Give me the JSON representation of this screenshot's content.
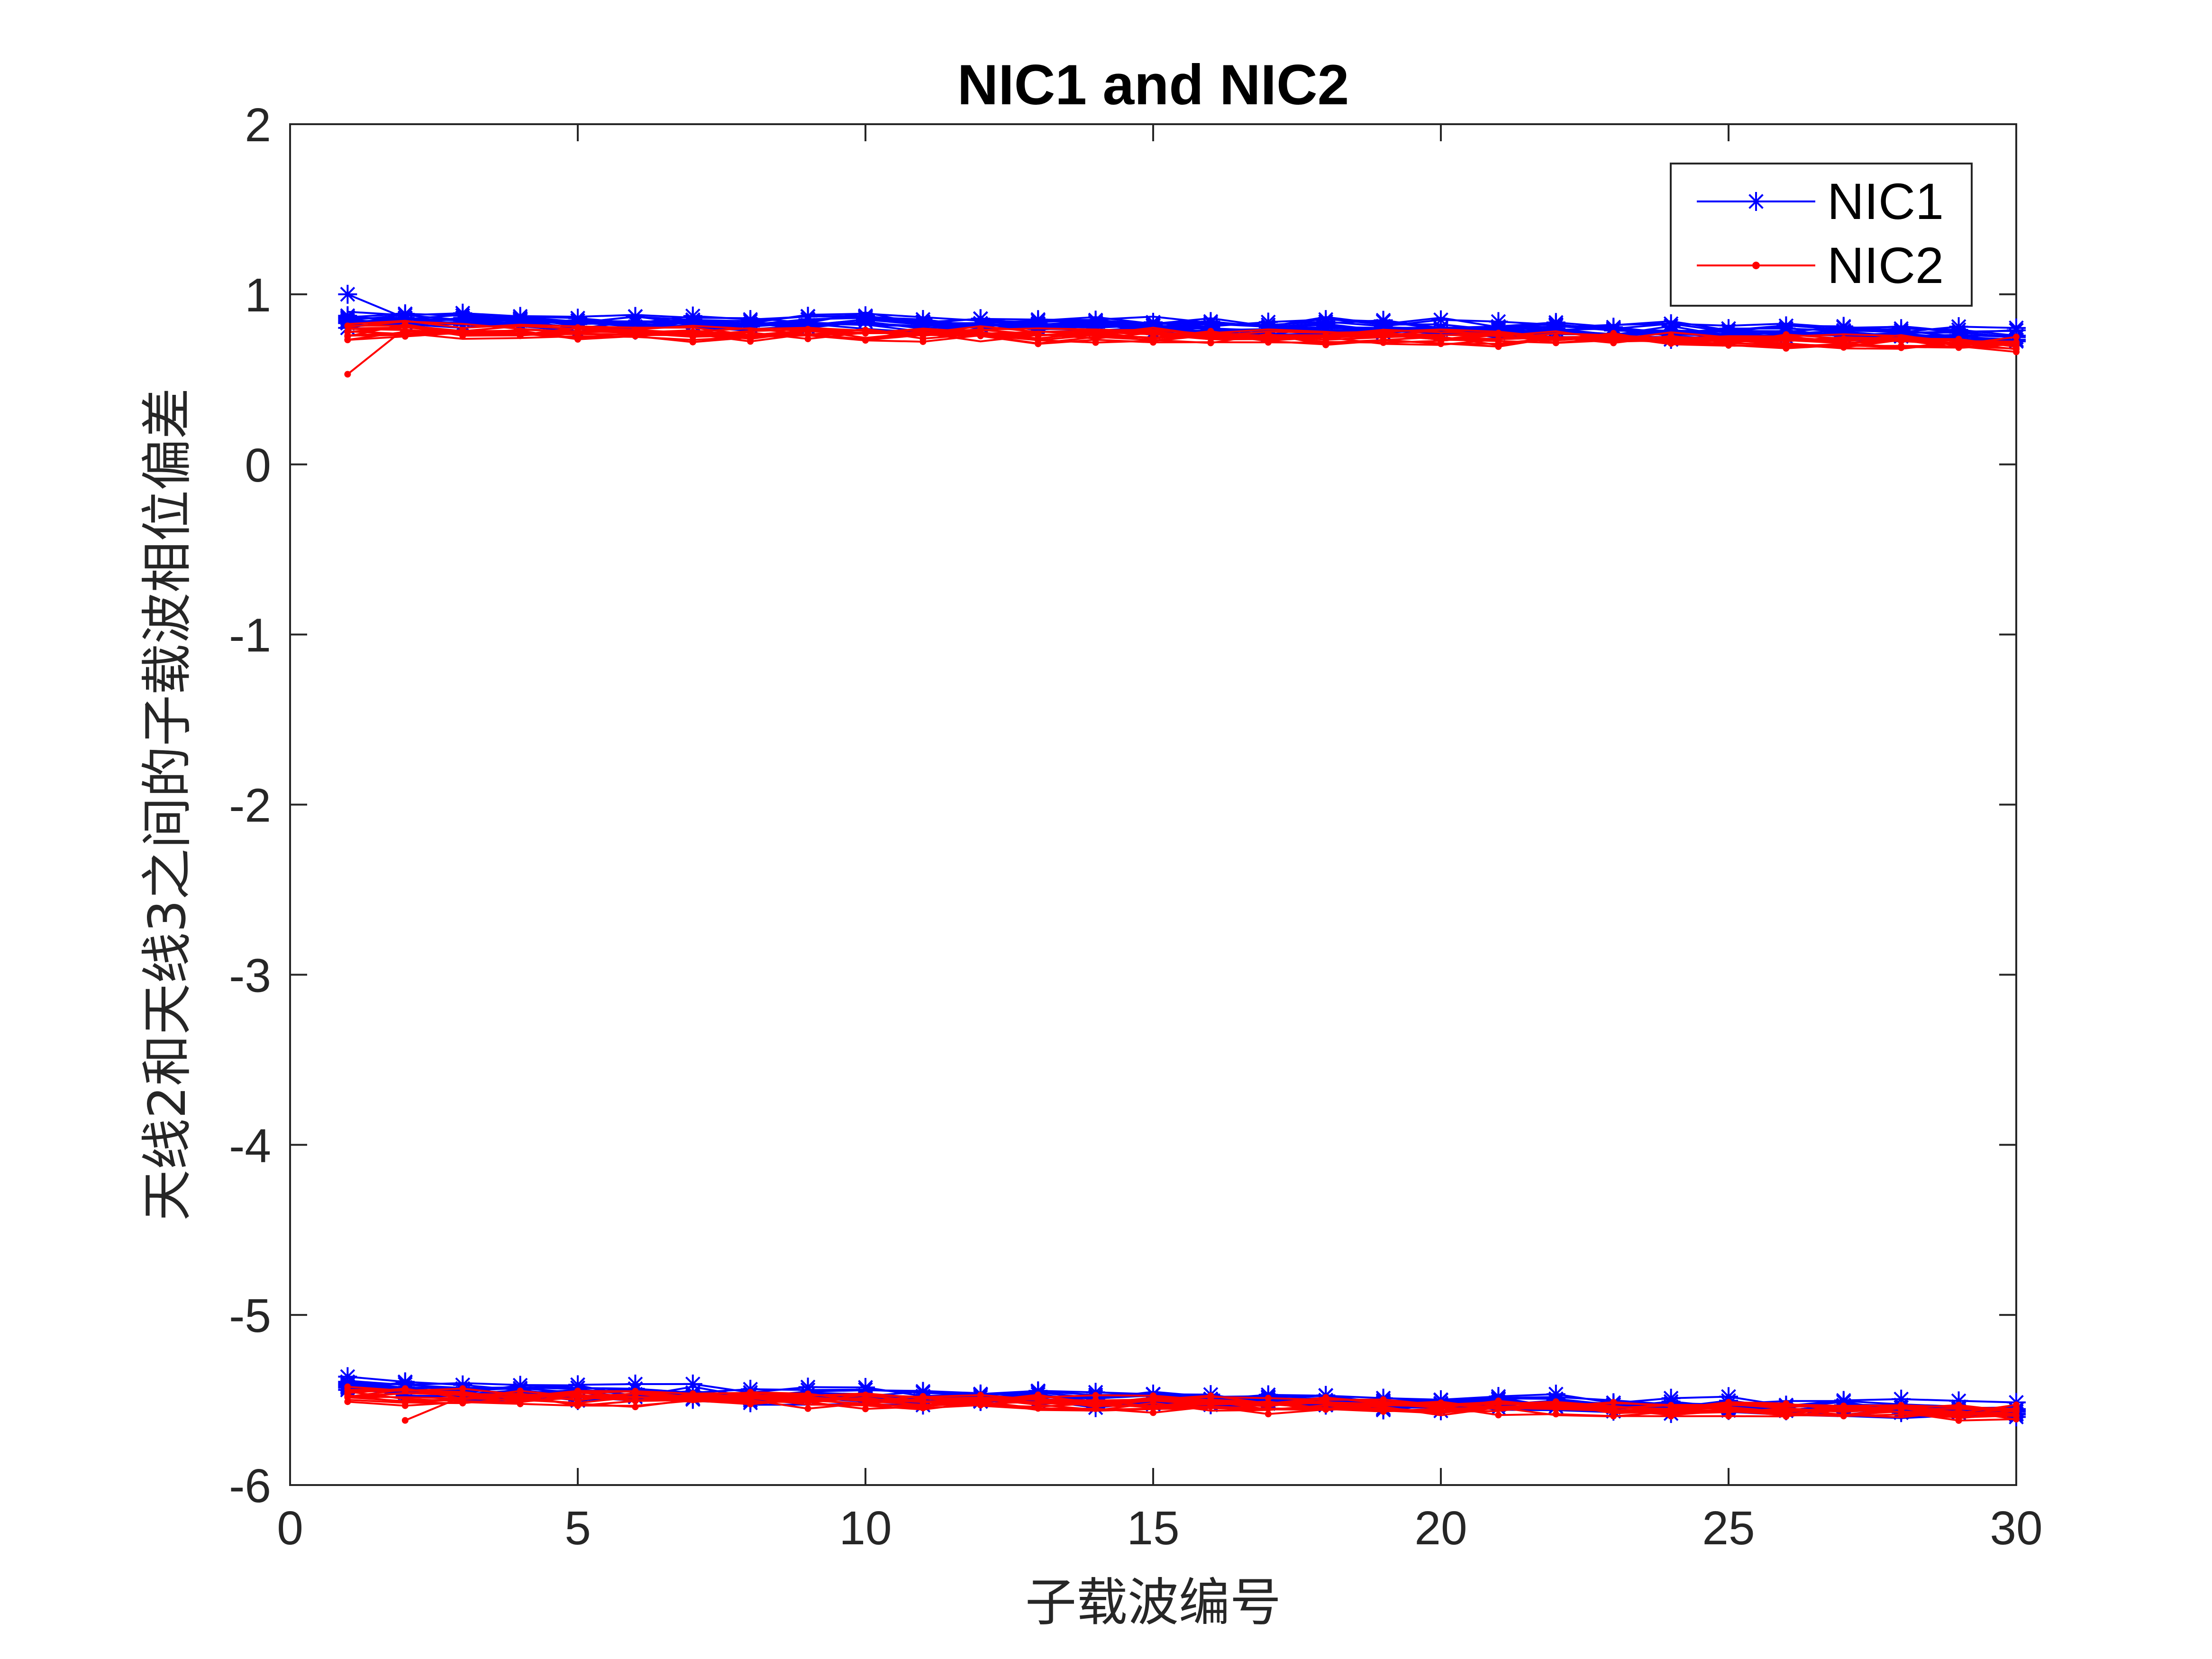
{
  "chart_data": {
    "type": "line",
    "title": "NIC1 and NIC2",
    "xlabel": "子载波编号",
    "ylabel": "天线2和天线3之间的子载波相位偏差",
    "xlim": [
      0,
      30
    ],
    "ylim": [
      -6,
      2
    ],
    "xticks": [
      0,
      5,
      10,
      15,
      20,
      25,
      30
    ],
    "yticks": [
      -6,
      -5,
      -4,
      -3,
      -2,
      -1,
      0,
      1,
      2
    ],
    "xtick_labels": [
      "0",
      "5",
      "10",
      "15",
      "20",
      "25",
      "30"
    ],
    "ytick_labels": [
      "-6",
      "-5",
      "-4",
      "-3",
      "-2",
      "-1",
      "0",
      "1",
      "2"
    ],
    "grid": false,
    "legend_position": "top-right",
    "x": [
      1,
      2,
      3,
      4,
      5,
      6,
      7,
      8,
      9,
      10,
      11,
      12,
      13,
      14,
      15,
      16,
      17,
      18,
      19,
      20,
      21,
      22,
      23,
      24,
      25,
      26,
      27,
      28,
      29,
      30
    ],
    "series": [
      {
        "name": "NIC1",
        "color": "#0000ff",
        "marker": "asterisk",
        "upper_band_mean": [
          0.85,
          0.86,
          0.85,
          0.85,
          0.84,
          0.84,
          0.84,
          0.83,
          0.84,
          0.85,
          0.83,
          0.83,
          0.83,
          0.83,
          0.82,
          0.82,
          0.81,
          0.82,
          0.81,
          0.81,
          0.8,
          0.8,
          0.79,
          0.79,
          0.78,
          0.78,
          0.78,
          0.77,
          0.77,
          0.76
        ],
        "lower_band_mean": [
          -5.4,
          -5.42,
          -5.44,
          -5.45,
          -5.45,
          -5.46,
          -5.46,
          -5.47,
          -5.47,
          -5.47,
          -5.48,
          -5.48,
          -5.48,
          -5.49,
          -5.49,
          -5.5,
          -5.5,
          -5.5,
          -5.51,
          -5.51,
          -5.51,
          -5.52,
          -5.52,
          -5.53,
          -5.53,
          -5.54,
          -5.54,
          -5.55,
          -5.55,
          -5.56
        ]
      },
      {
        "name": "NIC2",
        "color": "#ff0000",
        "marker": "dot",
        "upper_band_mean": [
          0.78,
          0.8,
          0.78,
          0.78,
          0.78,
          0.77,
          0.77,
          0.77,
          0.77,
          0.77,
          0.77,
          0.77,
          0.76,
          0.76,
          0.76,
          0.76,
          0.76,
          0.75,
          0.75,
          0.75,
          0.74,
          0.74,
          0.74,
          0.73,
          0.73,
          0.73,
          0.72,
          0.72,
          0.71,
          0.71
        ],
        "lower_band_mean": [
          -5.47,
          -5.48,
          -5.48,
          -5.48,
          -5.49,
          -5.49,
          -5.49,
          -5.5,
          -5.5,
          -5.5,
          -5.51,
          -5.51,
          -5.51,
          -5.52,
          -5.52,
          -5.52,
          -5.53,
          -5.53,
          -5.53,
          -5.54,
          -5.54,
          -5.54,
          -5.55,
          -5.55,
          -5.55,
          -5.56,
          -5.56,
          -5.56,
          -5.57,
          -5.57
        ]
      }
    ],
    "outliers": [
      {
        "series": "NIC2",
        "x": 1,
        "y": 0.53
      },
      {
        "series": "NIC2",
        "x": 2,
        "y": -5.62
      },
      {
        "series": "NIC1",
        "x": 1,
        "y": 1.0
      }
    ]
  }
}
